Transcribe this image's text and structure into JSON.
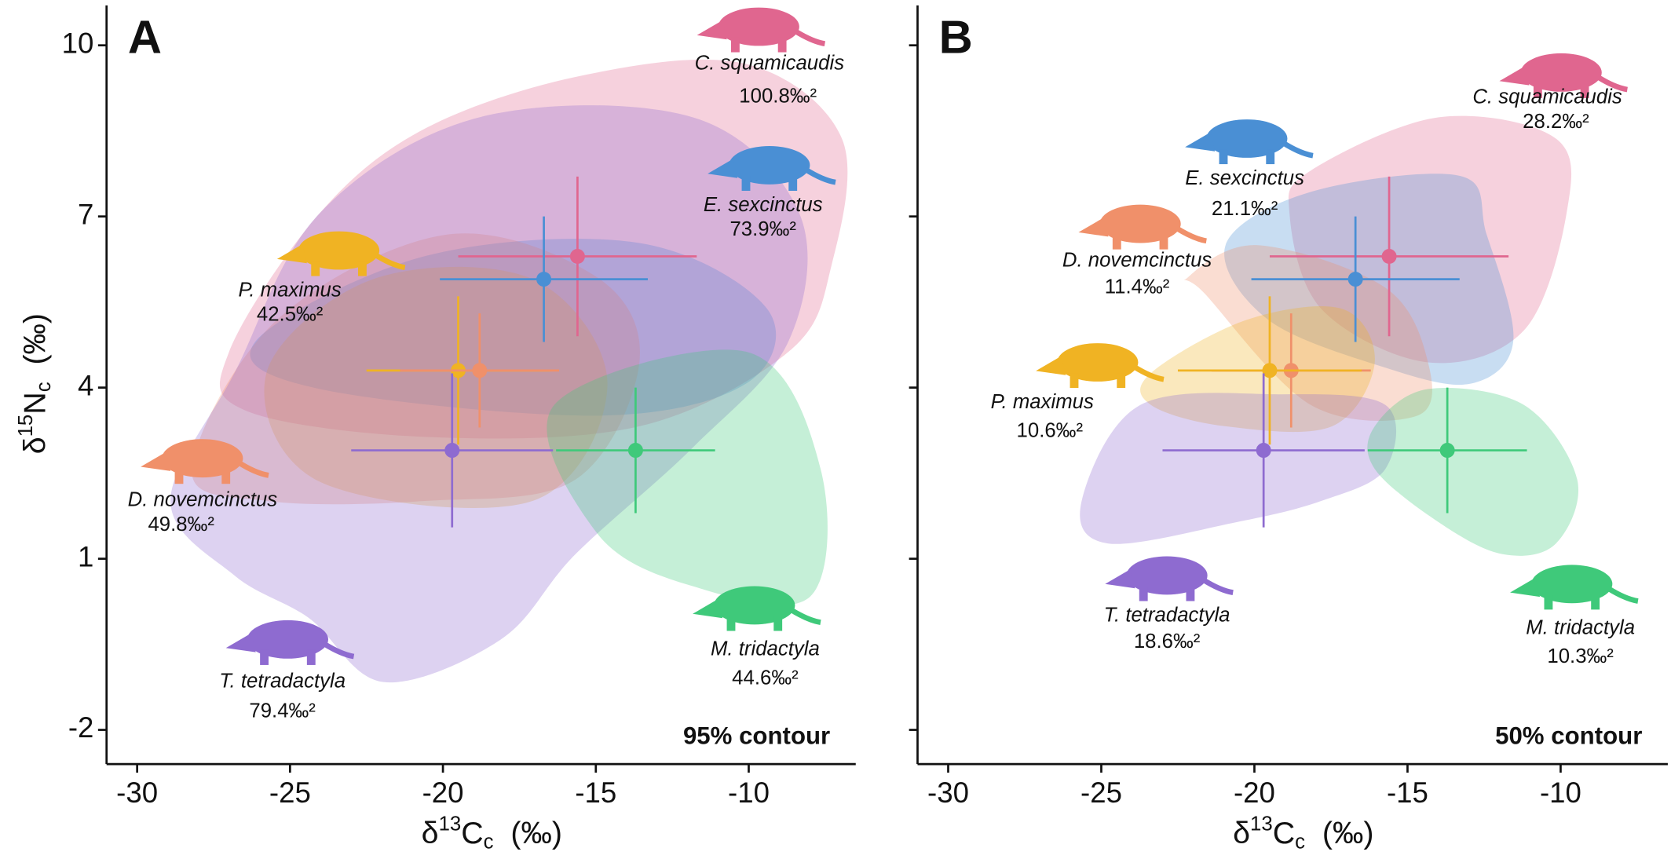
{
  "chart_data": [
    {
      "type": "scatter",
      "panel_label": "A",
      "note": "95% contour",
      "xlabel": {
        "prefix": "δ",
        "sup": "13",
        "main": "C",
        "sub": "c",
        "unit": "(‰)"
      },
      "ylabel": {
        "prefix": "δ",
        "sup": "15",
        "main": "N",
        "sub": "c",
        "unit": "(‰)"
      },
      "xlim": [
        -31,
        -6.5
      ],
      "ylim": [
        -2.6,
        10.7
      ],
      "xticks": [
        -30,
        -25,
        -20,
        -15,
        -10
      ],
      "yticks": [
        10,
        7,
        4,
        1,
        -2
      ],
      "series": [
        {
          "name": "C. squamicaudis",
          "color": "#e0668f",
          "x": -15.6,
          "y": 6.3,
          "xerr": 3.9,
          "yerr": 1.4,
          "area": "100.8‰²"
        },
        {
          "name": "E. sexcinctus",
          "color": "#4a8fd4",
          "x": -16.7,
          "y": 5.9,
          "xerr": 3.4,
          "yerr": 1.1,
          "area": "73.9‰²"
        },
        {
          "name": "P. maximus",
          "color": "#f0b323",
          "x": -19.5,
          "y": 4.3,
          "xerr": 3.0,
          "yerr": 1.3,
          "area": "42.5‰²"
        },
        {
          "name": "D. novemcinctus",
          "color": "#f0906a",
          "x": -18.8,
          "y": 4.3,
          "xerr": 2.6,
          "yerr": 1.0,
          "area": "49.8‰²"
        },
        {
          "name": "T. tetradactyla",
          "color": "#8e6bd0",
          "x": -19.7,
          "y": 2.9,
          "xerr": 3.3,
          "yerr": 1.35,
          "area": "79.4‰²"
        },
        {
          "name": "M. tridactyla",
          "color": "#3fc97a",
          "x": -13.7,
          "y": 2.9,
          "xerr": 2.6,
          "yerr": 1.1,
          "area": "44.6‰²"
        }
      ]
    },
    {
      "type": "scatter",
      "panel_label": "B",
      "note": "50% contour",
      "xlabel": {
        "prefix": "δ",
        "sup": "13",
        "main": "C",
        "sub": "c",
        "unit": "(‰)"
      },
      "xlim": [
        -31,
        -6.5
      ],
      "ylim": [
        -2.6,
        10.7
      ],
      "xticks": [
        -30,
        -25,
        -20,
        -15,
        -10
      ],
      "yticks": [
        10,
        7,
        4,
        1,
        -2
      ],
      "series": [
        {
          "name": "C. squamicaudis",
          "color": "#e0668f",
          "x": -15.6,
          "y": 6.3,
          "xerr": 3.9,
          "yerr": 1.4,
          "area": "28.2‰²"
        },
        {
          "name": "E. sexcinctus",
          "color": "#4a8fd4",
          "x": -16.7,
          "y": 5.9,
          "xerr": 3.4,
          "yerr": 1.1,
          "area": "21.1‰²"
        },
        {
          "name": "D. novemcinctus",
          "color": "#f0906a",
          "x": -18.8,
          "y": 4.3,
          "xerr": 2.6,
          "yerr": 1.0,
          "area": "11.4‰²"
        },
        {
          "name": "P. maximus",
          "color": "#f0b323",
          "x": -19.5,
          "y": 4.3,
          "xerr": 3.0,
          "yerr": 1.3,
          "area": "10.6‰²"
        },
        {
          "name": "T. tetradactyla",
          "color": "#8e6bd0",
          "x": -19.7,
          "y": 2.9,
          "xerr": 3.3,
          "yerr": 1.35,
          "area": "18.6‰²"
        },
        {
          "name": "M. tridactyla",
          "color": "#3fc97a",
          "x": -13.7,
          "y": 2.9,
          "xerr": 2.6,
          "yerr": 1.1,
          "area": "10.3‰²"
        }
      ]
    }
  ]
}
